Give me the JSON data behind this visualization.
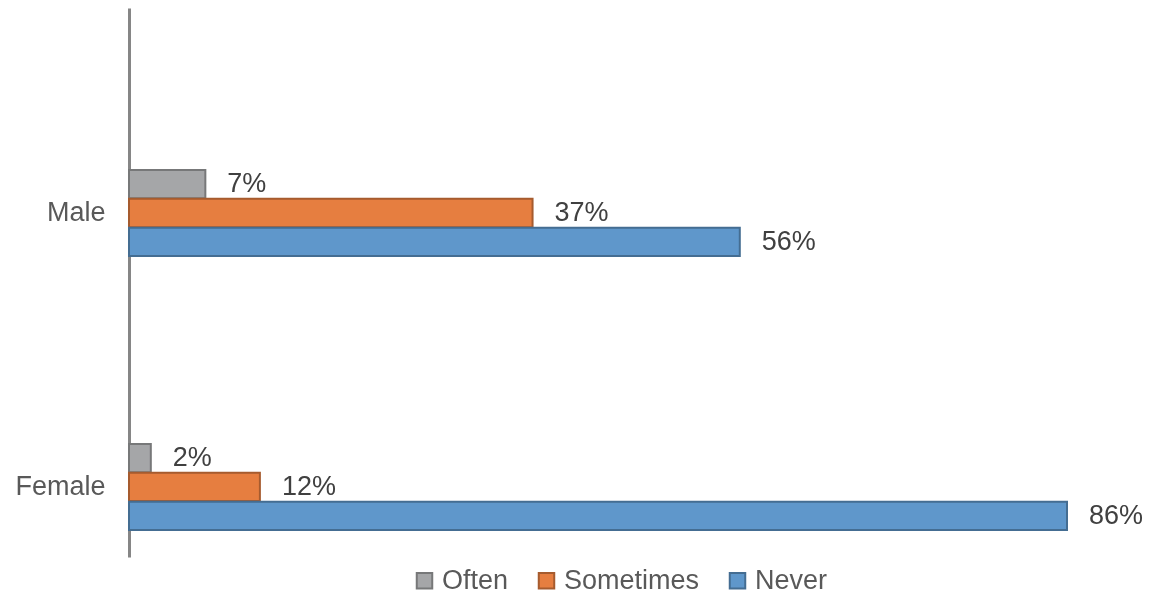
{
  "chart_data": {
    "type": "bar",
    "orientation": "horizontal",
    "categories": [
      "Male",
      "Female"
    ],
    "series": [
      {
        "name": "Often",
        "color": "#a5a6a8",
        "values": [
          7,
          2
        ],
        "value_labels": [
          "7%",
          "2%"
        ]
      },
      {
        "name": "Sometimes",
        "color": "#e67e40",
        "values": [
          37,
          12
        ],
        "value_labels": [
          "37%",
          "12%"
        ]
      },
      {
        "name": "Never",
        "color": "#5f97cb",
        "values": [
          56,
          86
        ],
        "value_labels": [
          "56%",
          "86%"
        ]
      }
    ],
    "legend": "bottom",
    "tick_labels": "y"
  }
}
